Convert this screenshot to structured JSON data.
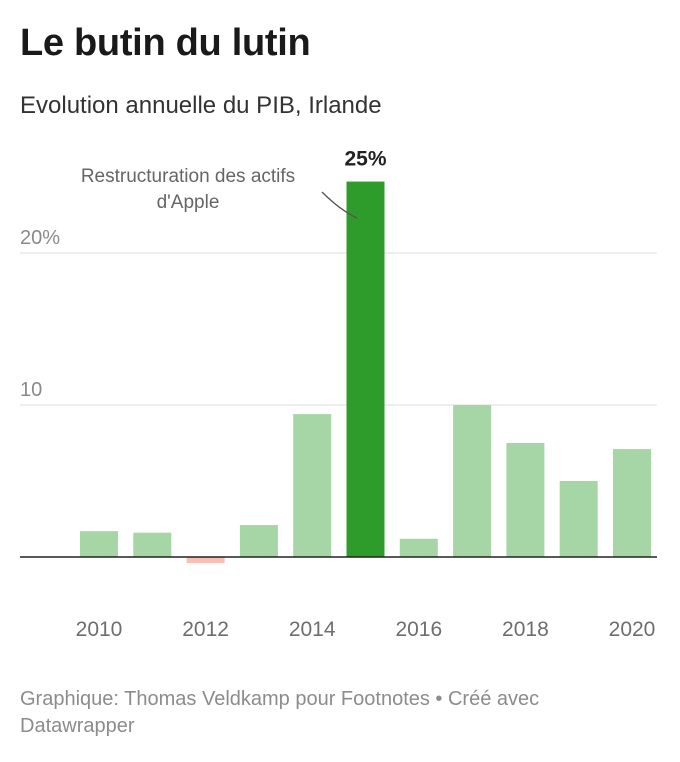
{
  "header": {
    "title": "Le butin du lutin",
    "subtitle": "Evolution annuelle du PIB, Irlande"
  },
  "footer": {
    "credit": "Graphique: Thomas Veldkamp pour Footnotes • Créé avec Datawrapper"
  },
  "colors": {
    "positive": "#a6d5a6",
    "negative": "#f8c0b5",
    "highlight": "#2e9c2b",
    "grid": "#dddddd",
    "baseline": "#222222",
    "tick_text": "#8a8a8a",
    "x_text": "#6e6e6e"
  },
  "chart_data": {
    "type": "bar",
    "title": "Le butin du lutin",
    "subtitle": "Evolution annuelle du PIB, Irlande",
    "xlabel": "",
    "ylabel": "",
    "categories": [
      "2010",
      "2011",
      "2012",
      "2013",
      "2014",
      "2015",
      "2016",
      "2017",
      "2018",
      "2019",
      "2020"
    ],
    "values": [
      1.7,
      1.6,
      -0.4,
      2.1,
      9.4,
      24.7,
      1.2,
      10.0,
      7.5,
      5.0,
      7.1
    ],
    "highlight_category": "2015",
    "highlight_label": "25%",
    "annotation": "Restructuration des actifs d'Apple",
    "annotation_lines": [
      "Restructuration des actifs",
      "d'Apple"
    ],
    "ylim": [
      -0.5,
      25
    ],
    "yticks": [
      10,
      20
    ],
    "ytick_labels": [
      "10",
      "20%"
    ],
    "xtick_labels": [
      "2010",
      "2012",
      "2014",
      "2016",
      "2018",
      "2020"
    ],
    "grid": true,
    "legend": "none"
  }
}
